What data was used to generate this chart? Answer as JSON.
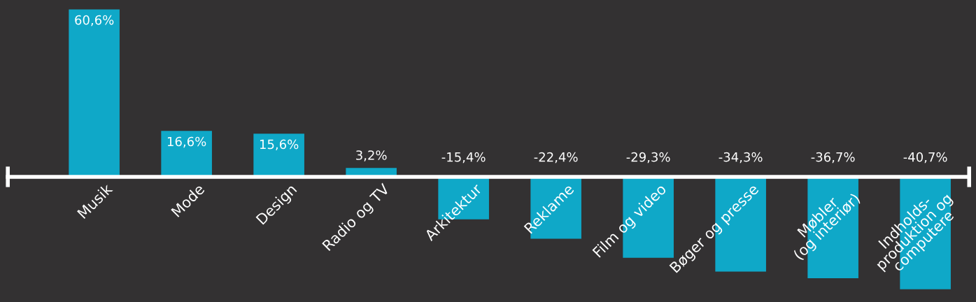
{
  "chart_data": {
    "type": "bar",
    "categories": [
      "Musik",
      "Mode",
      "Design",
      "Radio og TV",
      "Arkitektur",
      "Reklame",
      "Film og video",
      "Bøger og presse",
      "Møbler\n(og interiør)",
      "Indholds-\nproduktion og\ncomputere"
    ],
    "values": [
      60.6,
      16.6,
      15.6,
      3.2,
      -15.4,
      -22.4,
      -29.3,
      -34.3,
      -36.7,
      -40.7
    ],
    "value_labels": [
      "60,6%",
      "16,6%",
      "15,6%",
      "3,2%",
      "-15,4%",
      "-22,4%",
      "-29,3%",
      "-34,3%",
      "-36,7%",
      "-40,7%"
    ],
    "color": "#0fa8c8"
  }
}
